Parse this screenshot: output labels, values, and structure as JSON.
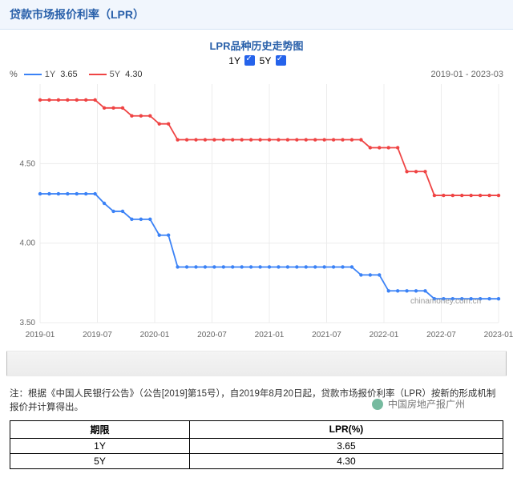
{
  "header": {
    "title": "贷款市场报价利率（LPR）"
  },
  "chart": {
    "title": "LPR品种历史走势图",
    "controls": {
      "y1_label": "1Y",
      "y5_label": "5Y"
    },
    "legend": {
      "y1": {
        "name": "1Y",
        "value": "3.65",
        "color": "#3b82f6"
      },
      "y5": {
        "name": "5Y",
        "value": "4.30",
        "color": "#ef4444"
      }
    },
    "y_unit": "%",
    "date_range": "2019-01 - 2023-03",
    "ylim": [
      3.5,
      5.0
    ],
    "yticks": [
      3.5,
      4.0,
      4.5
    ],
    "xticks": [
      "2019-01",
      "2019-07",
      "2020-01",
      "2020-07",
      "2021-01",
      "2021-07",
      "2022-01",
      "2022-07",
      "2023-01"
    ],
    "grid_color": "#ececec",
    "watermark": "chinamoney.com.cn",
    "series_1y": [
      4.31,
      4.31,
      4.31,
      4.31,
      4.31,
      4.31,
      4.31,
      4.25,
      4.2,
      4.2,
      4.15,
      4.15,
      4.15,
      4.05,
      4.05,
      3.85,
      3.85,
      3.85,
      3.85,
      3.85,
      3.85,
      3.85,
      3.85,
      3.85,
      3.85,
      3.85,
      3.85,
      3.85,
      3.85,
      3.85,
      3.85,
      3.85,
      3.85,
      3.85,
      3.85,
      3.8,
      3.8,
      3.8,
      3.7,
      3.7,
      3.7,
      3.7,
      3.7,
      3.65,
      3.65,
      3.65,
      3.65,
      3.65,
      3.65,
      3.65,
      3.65
    ],
    "series_5y": [
      4.9,
      4.9,
      4.9,
      4.9,
      4.9,
      4.9,
      4.9,
      4.85,
      4.85,
      4.85,
      4.8,
      4.8,
      4.8,
      4.75,
      4.75,
      4.65,
      4.65,
      4.65,
      4.65,
      4.65,
      4.65,
      4.65,
      4.65,
      4.65,
      4.65,
      4.65,
      4.65,
      4.65,
      4.65,
      4.65,
      4.65,
      4.65,
      4.65,
      4.65,
      4.65,
      4.65,
      4.6,
      4.6,
      4.6,
      4.6,
      4.45,
      4.45,
      4.45,
      4.3,
      4.3,
      4.3,
      4.3,
      4.3,
      4.3,
      4.3,
      4.3
    ],
    "marker_radius": 2.2,
    "line_width": 1.8
  },
  "note": "注：根据《中国人民银行公告》（公告[2019]第15号），自2019年8月20日起，贷款市场报价利率（LPR）按新的形成机制报价并计算得出。",
  "table": {
    "columns": [
      "期限",
      "LPR(%)"
    ],
    "rows": [
      [
        "1Y",
        "3.65"
      ],
      [
        "5Y",
        "4.30"
      ]
    ]
  },
  "overlay_wm": "中国房地产报广州"
}
